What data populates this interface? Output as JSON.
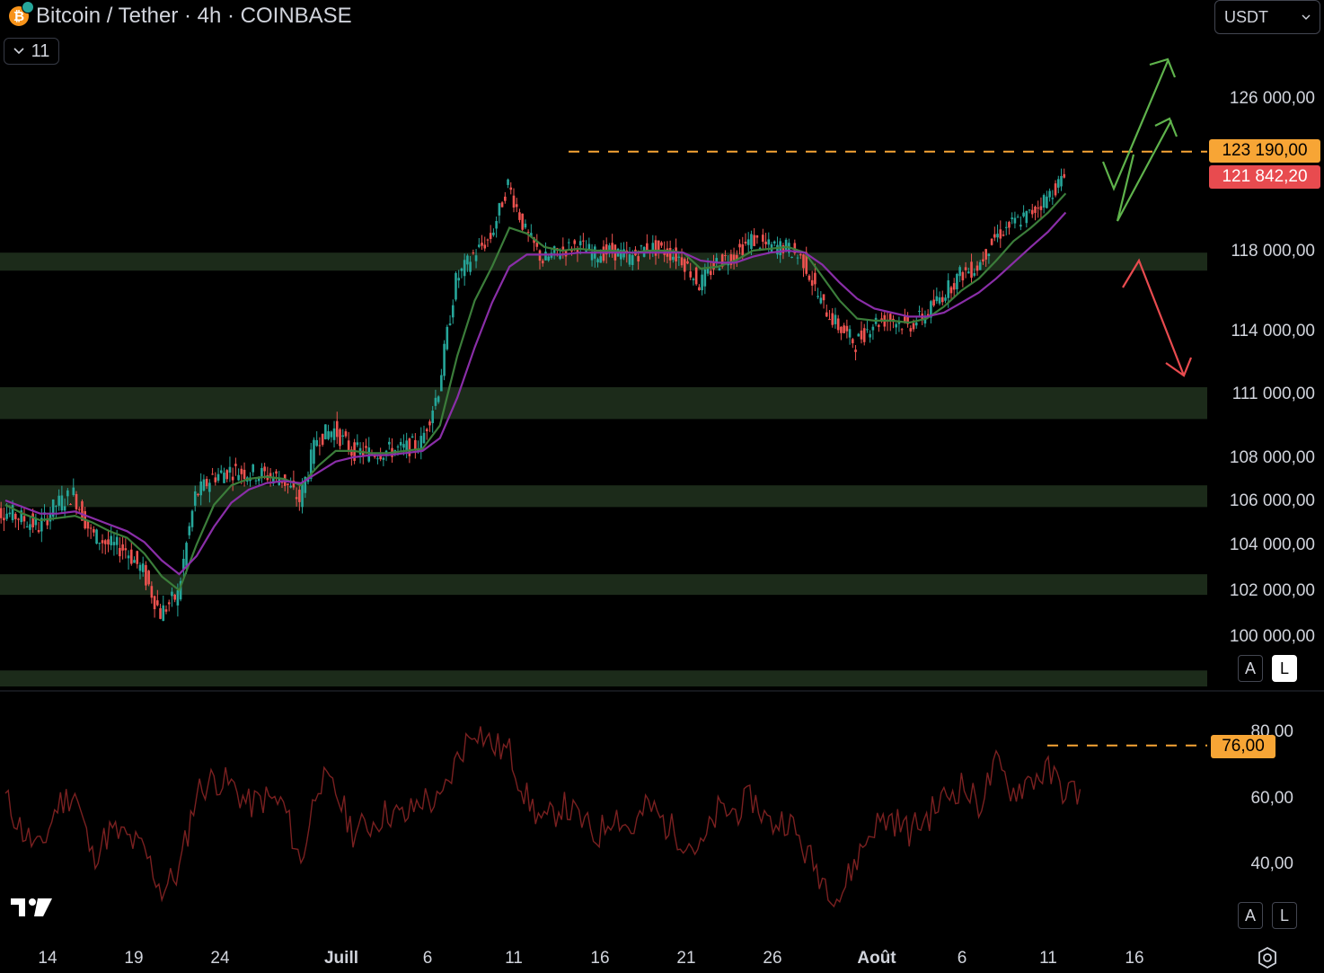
{
  "header": {
    "symbol_title": "Bitcoin / Tether · 4h · COINBASE",
    "coin_glyph": "₿",
    "indicators_count": "11",
    "currency": "USDT"
  },
  "price_axis": {
    "labels": [
      "126 000,00",
      "118 000,00",
      "114 000,00",
      "111 000,00",
      "108 000,00",
      "106 000,00",
      "104 000,00",
      "102 000,00",
      "100 000,00"
    ],
    "resistance_tag": "123 190,00",
    "last_price_tag": "121 842,20",
    "resistance_color": "#f7a535",
    "last_price_color": "#e84b4f",
    "scale_buttons": [
      "A",
      "L"
    ]
  },
  "rsi_axis": {
    "labels": [
      "80,00",
      "60,00",
      "40,00"
    ],
    "level_tag": "76,00",
    "scale_buttons": [
      "A",
      "L"
    ]
  },
  "time_axis": {
    "labels": [
      "14",
      "19",
      "24",
      "Juill",
      "6",
      "11",
      "16",
      "21",
      "26",
      "Août",
      "6",
      "11",
      "16"
    ],
    "bold": [
      false,
      false,
      false,
      true,
      false,
      false,
      false,
      false,
      false,
      true,
      false,
      false,
      false
    ]
  },
  "chart_data": [
    {
      "type": "line",
      "chart": "candlestick price series (closing path)",
      "x": [
        "Jun 14",
        "Jun 15",
        "Jun 16",
        "Jun 17",
        "Jun 18",
        "Jun 19",
        "Jun 20",
        "Jun 21",
        "Jun 22",
        "Jun 23",
        "Jun 24",
        "Jun 25",
        "Jun 26",
        "Jun 27",
        "Jun 28",
        "Jun 29",
        "Jun 30",
        "Jul 1",
        "Jul 2",
        "Jul 3",
        "Jul 4",
        "Jul 5",
        "Jul 6",
        "Jul 7",
        "Jul 8",
        "Jul 9",
        "Jul 10",
        "Jul 11",
        "Jul 12",
        "Jul 13",
        "Jul 14",
        "Jul 15",
        "Jul 16",
        "Jul 17",
        "Jul 18",
        "Jul 19",
        "Jul 20",
        "Jul 21",
        "Jul 22",
        "Jul 23",
        "Jul 24",
        "Jul 25",
        "Jul 26",
        "Jul 27",
        "Jul 28",
        "Jul 29",
        "Jul 30",
        "Jul 31",
        "Aug 1",
        "Aug 2",
        "Aug 3",
        "Aug 4",
        "Aug 5",
        "Aug 6",
        "Aug 7",
        "Aug 8",
        "Aug 9",
        "Aug 10",
        "Aug 11",
        "Aug 12",
        "Aug 13",
        "Aug 14"
      ],
      "close": [
        105500,
        105200,
        104800,
        105800,
        106300,
        104500,
        104000,
        103800,
        102800,
        101000,
        101800,
        106200,
        107100,
        107400,
        107300,
        107200,
        107000,
        106000,
        108900,
        109300,
        108300,
        108200,
        108300,
        108400,
        108700,
        111200,
        116500,
        117800,
        118700,
        121500,
        119000,
        117500,
        118000,
        118300,
        117800,
        118000,
        117600,
        118200,
        118000,
        117600,
        116300,
        117400,
        117800,
        118600,
        118200,
        118200,
        117500,
        115400,
        114200,
        113400,
        114400,
        114600,
        114200,
        114800,
        115800,
        116800,
        117200,
        118700,
        119400,
        119900,
        120800,
        121842
      ],
      "ylim": [
        99000,
        128000
      ]
    },
    {
      "type": "line",
      "chart": "moving averages (green = slower, purple = faster)",
      "series": [
        {
          "values": [
            105800,
            105400,
            105100,
            105200,
            105300,
            105000,
            104600,
            104300,
            103600,
            102600,
            102000,
            104000,
            105800,
            106700,
            107000,
            107100,
            107000,
            106700,
            107600,
            108300,
            108300,
            108200,
            108200,
            108300,
            108400,
            109500,
            112800,
            115500,
            117200,
            119200,
            118900,
            118200,
            118000,
            118100,
            118000,
            118000,
            117900,
            118000,
            118000,
            117900,
            117100,
            117200,
            117500,
            118000,
            118100,
            118200,
            117900,
            116700,
            115500,
            114600,
            114500,
            114500,
            114400,
            114600,
            115200,
            116000,
            116600,
            117500,
            118500,
            119200,
            120000,
            121000
          ]
        },
        {
          "values": [
            106000,
            105700,
            105400,
            105400,
            105500,
            105200,
            104900,
            104600,
            104100,
            103300,
            102700,
            103500,
            104800,
            105900,
            106500,
            106800,
            106900,
            106800,
            107300,
            107800,
            108000,
            108100,
            108100,
            108200,
            108300,
            108900,
            110800,
            113200,
            115400,
            117200,
            117800,
            117800,
            117800,
            117900,
            117900,
            117900,
            117900,
            117900,
            117900,
            117900,
            117500,
            117400,
            117400,
            117700,
            117900,
            118000,
            117900,
            117300,
            116400,
            115600,
            115100,
            114900,
            114700,
            114700,
            114900,
            115400,
            115900,
            116600,
            117400,
            118200,
            119000,
            120000
          ]
        }
      ]
    },
    {
      "type": "line",
      "chart": "RSI",
      "y_ticks": [
        40,
        60,
        80
      ],
      "values": [
        60,
        50,
        44,
        58,
        62,
        42,
        50,
        48,
        44,
        32,
        38,
        62,
        66,
        64,
        58,
        60,
        58,
        40,
        66,
        62,
        50,
        52,
        56,
        54,
        60,
        58,
        72,
        82,
        76,
        74,
        60,
        52,
        58,
        54,
        48,
        56,
        50,
        58,
        52,
        48,
        44,
        56,
        56,
        60,
        52,
        54,
        44,
        36,
        30,
        42,
        52,
        54,
        50,
        54,
        60,
        64,
        58,
        70,
        62,
        66,
        68,
        62
      ],
      "level": 76,
      "ylim": [
        20,
        88
      ]
    }
  ],
  "annotations": {
    "support_zones": [
      {
        "low": 117000,
        "high": 117900
      },
      {
        "low": 109800,
        "high": 111300
      },
      {
        "low": 105700,
        "high": 106700
      },
      {
        "low": 101800,
        "high": 102700
      },
      {
        "low": 97800,
        "high": 98500
      }
    ],
    "resistance_level": 123190,
    "bull_arrow_color": "#5fb34c",
    "bear_arrow_color": "#e84b4f",
    "zone_color": "#1c2b1a"
  }
}
